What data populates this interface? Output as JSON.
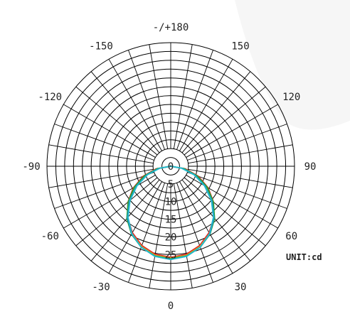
{
  "chart_data": {
    "type": "polar",
    "unit_label": "UNIT:cd",
    "angle_labels": [
      {
        "angle": 0,
        "text": "0"
      },
      {
        "angle": 30,
        "text": "30"
      },
      {
        "angle": 60,
        "text": "60"
      },
      {
        "angle": 90,
        "text": "90"
      },
      {
        "angle": 120,
        "text": "120"
      },
      {
        "angle": 150,
        "text": "150"
      },
      {
        "angle": 180,
        "text": "-/+180"
      },
      {
        "angle": -150,
        "text": "-150"
      },
      {
        "angle": -120,
        "text": "-120"
      },
      {
        "angle": -90,
        "text": "-90"
      },
      {
        "angle": -60,
        "text": "-60"
      },
      {
        "angle": -30,
        "text": "-30"
      }
    ],
    "radial_ticks": [
      0,
      5,
      10,
      15,
      20,
      25
    ],
    "radial_max": 35,
    "grid": true,
    "series": [
      {
        "color": "#dd2222",
        "angles": [
          -90,
          -80,
          -70,
          -60,
          -50,
          -40,
          -30,
          -20,
          -10,
          0,
          10,
          20,
          30,
          40,
          50,
          60,
          70,
          80,
          90
        ],
        "values": [
          0.0,
          4.2,
          8.3,
          12.2,
          15.8,
          19.0,
          21.7,
          23.9,
          25.3,
          25.8,
          25.3,
          23.9,
          21.7,
          19.0,
          15.8,
          12.2,
          8.3,
          4.2,
          0.0
        ]
      },
      {
        "color": "#e0b020",
        "angles": [
          -90,
          -80,
          -70,
          -60,
          -50,
          -40,
          -30,
          -20,
          -10,
          0,
          10,
          20,
          30,
          40,
          50,
          60,
          70,
          80,
          90
        ],
        "values": [
          0.0,
          3.6,
          7.6,
          11.6,
          15.5,
          19.1,
          22.0,
          24.2,
          25.6,
          26.0,
          25.6,
          24.2,
          22.0,
          19.1,
          15.5,
          11.6,
          7.6,
          3.6,
          0.0
        ]
      },
      {
        "color": "#22aa33",
        "angles": [
          -90,
          -80,
          -70,
          -60,
          -50,
          -40,
          -30,
          -20,
          -10,
          0,
          10,
          20,
          30,
          40,
          50,
          60,
          70,
          80,
          90
        ],
        "values": [
          0.0,
          3.8,
          7.9,
          11.9,
          15.7,
          19.3,
          22.2,
          24.4,
          25.8,
          26.2,
          25.8,
          24.4,
          22.2,
          19.3,
          15.7,
          11.9,
          7.9,
          3.8,
          0.0
        ]
      },
      {
        "color": "#2277dd",
        "angles": [
          -90,
          -80,
          -70,
          -60,
          -50,
          -40,
          -30,
          -20,
          -10,
          0,
          10,
          20,
          30,
          40,
          50,
          60,
          70,
          80,
          90
        ],
        "values": [
          0.0,
          3.3,
          7.2,
          11.2,
          15.2,
          19.0,
          22.1,
          24.4,
          25.9,
          26.4,
          25.9,
          24.4,
          22.1,
          19.0,
          15.2,
          11.2,
          7.2,
          3.3,
          0.0
        ]
      },
      {
        "color": "#22bbcc",
        "angles": [
          -90,
          -80,
          -70,
          -60,
          -50,
          -40,
          -30,
          -20,
          -10,
          0,
          10,
          20,
          30,
          40,
          50,
          60,
          70,
          80,
          90
        ],
        "values": [
          0.0,
          3.1,
          7.0,
          11.0,
          15.0,
          18.8,
          22.0,
          24.4,
          25.9,
          26.4,
          25.9,
          24.4,
          22.0,
          18.8,
          15.0,
          11.0,
          7.0,
          3.1,
          0.0
        ]
      }
    ]
  }
}
